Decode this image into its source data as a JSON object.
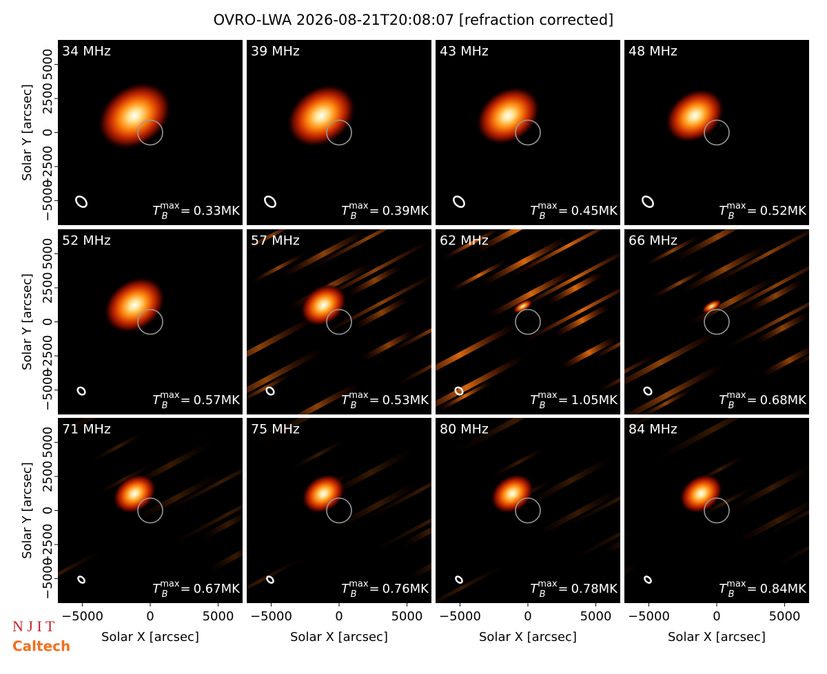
{
  "chart_data": {
    "type": "image-grid",
    "title": "OVRO-LWA 2026-08-21T20:08:07 [refraction corrected]",
    "xlabel": "Solar X [arcsec]",
    "ylabel": "Solar Y [arcsec]",
    "xlim": [
      -6800,
      6800
    ],
    "ylim": [
      -6800,
      6800
    ],
    "xticks": [
      {
        "value": -5000,
        "label": "−5000"
      },
      0,
      5000
    ],
    "yticks": [
      {
        "value": -5000,
        "label": "−5000"
      },
      {
        "value": -2500,
        "label": "−2500"
      },
      0,
      2500,
      5000
    ],
    "tb_symbol": "T",
    "tb_subscript": "B",
    "tb_superscript": "max",
    "tb_equals": "=",
    "panels": [
      {
        "label": "34 MHz",
        "tb_max": "0.33MK"
      },
      {
        "label": "39 MHz",
        "tb_max": "0.39MK"
      },
      {
        "label": "43 MHz",
        "tb_max": "0.45MK"
      },
      {
        "label": "48 MHz",
        "tb_max": "0.52MK"
      },
      {
        "label": "52 MHz",
        "tb_max": "0.57MK"
      },
      {
        "label": "57 MHz",
        "tb_max": "0.53MK"
      },
      {
        "label": "62 MHz",
        "tb_max": "1.05MK"
      },
      {
        "label": "66 MHz",
        "tb_max": "0.68MK"
      },
      {
        "label": "71 MHz",
        "tb_max": "0.67MK"
      },
      {
        "label": "75 MHz",
        "tb_max": "0.76MK"
      },
      {
        "label": "80 MHz",
        "tb_max": "0.78MK"
      },
      {
        "label": "84 MHz",
        "tb_max": "0.84MK"
      }
    ],
    "logos": [
      "N J I T",
      "Caltech"
    ]
  }
}
